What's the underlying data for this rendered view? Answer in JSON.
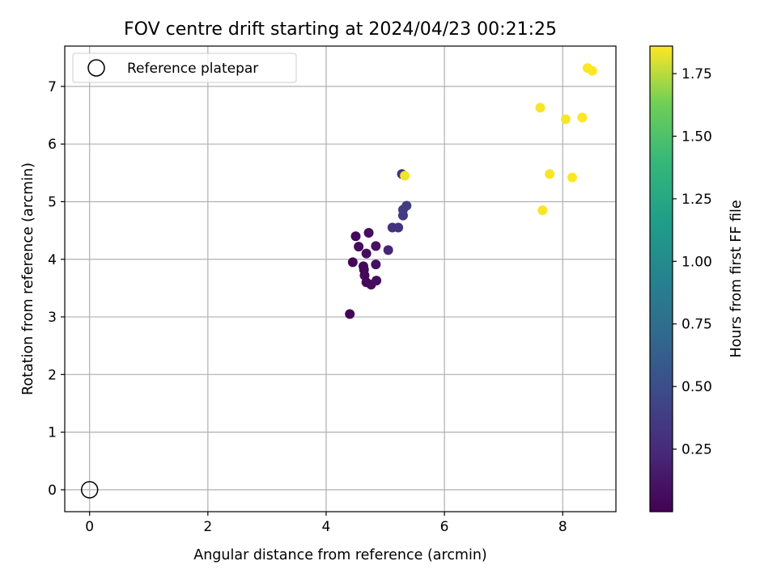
{
  "chart_data": {
    "type": "scatter",
    "title": "FOV centre drift starting at 2024/04/23 00:21:25",
    "xlabel": "Angular distance from reference (arcmin)",
    "ylabel": "Rotation from reference (arcmin)",
    "xlim": [
      -0.42,
      8.9
    ],
    "ylim": [
      -0.38,
      7.7
    ],
    "xticks": [
      0,
      2,
      4,
      6,
      8
    ],
    "yticks": [
      0,
      1,
      2,
      3,
      4,
      5,
      6,
      7
    ],
    "grid": true,
    "legend": {
      "position": "upper left",
      "entries": [
        {
          "label": "Reference platepar",
          "marker": "open-circle"
        }
      ]
    },
    "reference_point": {
      "x": 0,
      "y": 0,
      "label": "Reference platepar"
    },
    "colorbar": {
      "label": "Hours from first FF file",
      "colormap": "viridis",
      "range": [
        0.0,
        1.86
      ],
      "ticks": [
        0.25,
        0.5,
        0.75,
        1.0,
        1.25,
        1.5,
        1.75
      ],
      "tick_labels": [
        "0.25",
        "0.50",
        "0.75",
        "1.00",
        "1.25",
        "1.50",
        "1.75"
      ]
    },
    "series": [
      {
        "points": [
          {
            "x": 4.4,
            "y": 3.05,
            "t": 0.02
          },
          {
            "x": 4.45,
            "y": 3.95,
            "t": 0.03
          },
          {
            "x": 4.5,
            "y": 4.4,
            "t": 0.05
          },
          {
            "x": 4.55,
            "y": 4.22,
            "t": 0.06
          },
          {
            "x": 4.63,
            "y": 3.88,
            "t": 0.04
          },
          {
            "x": 4.64,
            "y": 3.82,
            "t": 0.05
          },
          {
            "x": 4.65,
            "y": 3.72,
            "t": 0.04
          },
          {
            "x": 4.68,
            "y": 4.1,
            "t": 0.07
          },
          {
            "x": 4.68,
            "y": 3.6,
            "t": 0.05
          },
          {
            "x": 4.72,
            "y": 4.46,
            "t": 0.08
          },
          {
            "x": 4.76,
            "y": 3.56,
            "t": 0.06
          },
          {
            "x": 4.84,
            "y": 4.23,
            "t": 0.1
          },
          {
            "x": 4.84,
            "y": 3.91,
            "t": 0.09
          },
          {
            "x": 4.85,
            "y": 3.63,
            "t": 0.07
          },
          {
            "x": 5.05,
            "y": 4.16,
            "t": 0.22
          },
          {
            "x": 5.12,
            "y": 4.55,
            "t": 0.3
          },
          {
            "x": 5.22,
            "y": 4.55,
            "t": 0.32
          },
          {
            "x": 5.28,
            "y": 5.48,
            "t": 0.33
          },
          {
            "x": 5.3,
            "y": 4.76,
            "t": 0.36
          },
          {
            "x": 5.3,
            "y": 4.86,
            "t": 0.37
          },
          {
            "x": 5.36,
            "y": 4.93,
            "t": 0.38
          },
          {
            "x": 5.33,
            "y": 5.45,
            "t": 1.84
          },
          {
            "x": 7.62,
            "y": 6.63,
            "t": 1.85
          },
          {
            "x": 7.66,
            "y": 4.85,
            "t": 1.85
          },
          {
            "x": 7.78,
            "y": 5.48,
            "t": 1.85
          },
          {
            "x": 8.05,
            "y": 6.43,
            "t": 1.85
          },
          {
            "x": 8.16,
            "y": 5.42,
            "t": 1.86
          },
          {
            "x": 8.33,
            "y": 6.46,
            "t": 1.86
          },
          {
            "x": 8.42,
            "y": 7.32,
            "t": 1.86
          },
          {
            "x": 8.5,
            "y": 7.27,
            "t": 1.86
          }
        ]
      }
    ]
  }
}
